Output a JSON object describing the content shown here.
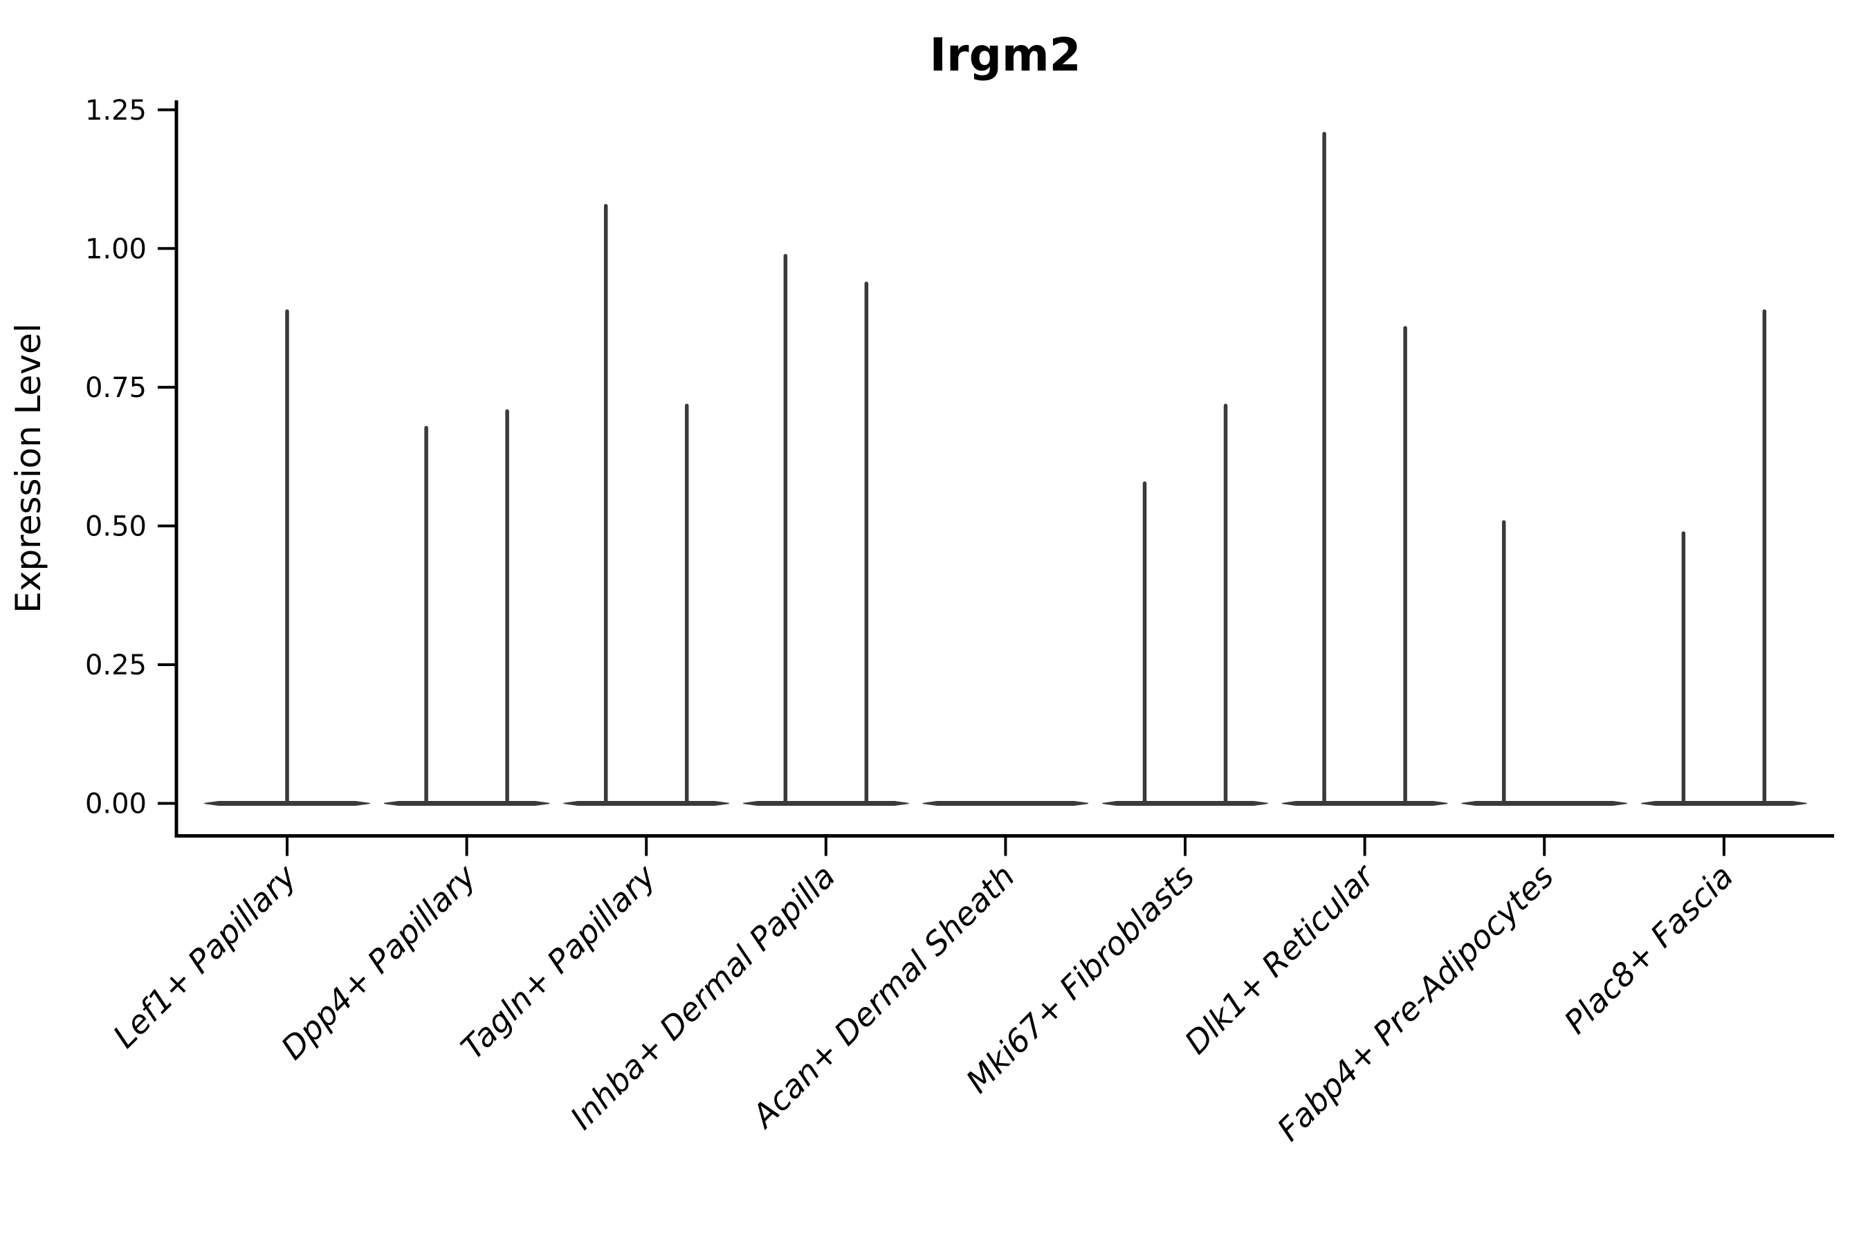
{
  "chart_data": {
    "type": "violin",
    "title": "Irgm2",
    "xlabel": "",
    "ylabel": "Expression Level",
    "ylim": [
      0,
      1.25
    ],
    "yticks": [
      0.0,
      0.25,
      0.5,
      0.75,
      1.0,
      1.25
    ],
    "ytick_labels": [
      "0.00",
      "0.25",
      "0.50",
      "0.75",
      "1.00",
      "1.25"
    ],
    "grid": false,
    "legend": "none",
    "xtick_label_rotation_deg": 45,
    "xtick_label_style": "italic",
    "categories": [
      "Lef1+ Papillary",
      "Dpp4+ Papillary",
      "Tagln+ Papillary",
      "Inhba+ Dermal Papilla",
      "Acan+ Dermal Sheath",
      "Mki67+ Fibroblasts",
      "Dlk1+ Reticular",
      "Fabp4+ Pre-Adipocytes",
      "Plac8+ Fascia"
    ],
    "series": [
      {
        "category": "Lef1+ Papillary",
        "baseline_bar_at": 0,
        "spikes": [
          {
            "position": "center",
            "max": 0.89
          }
        ]
      },
      {
        "category": "Dpp4+ Papillary",
        "baseline_bar_at": 0,
        "spikes": [
          {
            "position": "left",
            "max": 0.68
          },
          {
            "position": "right",
            "max": 0.71
          }
        ]
      },
      {
        "category": "Tagln+ Papillary",
        "baseline_bar_at": 0,
        "spikes": [
          {
            "position": "left",
            "max": 1.08
          },
          {
            "position": "right",
            "max": 0.72
          }
        ]
      },
      {
        "category": "Inhba+ Dermal Papilla",
        "baseline_bar_at": 0,
        "spikes": [
          {
            "position": "left",
            "max": 0.99
          },
          {
            "position": "right",
            "max": 0.94
          }
        ]
      },
      {
        "category": "Acan+ Dermal Sheath",
        "baseline_bar_at": 0,
        "spikes": []
      },
      {
        "category": "Mki67+ Fibroblasts",
        "baseline_bar_at": 0,
        "spikes": [
          {
            "position": "left",
            "max": 0.58
          },
          {
            "position": "right",
            "max": 0.72
          }
        ]
      },
      {
        "category": "Dlk1+ Reticular",
        "baseline_bar_at": 0,
        "spikes": [
          {
            "position": "left",
            "max": 1.21
          },
          {
            "position": "right",
            "max": 0.86
          }
        ]
      },
      {
        "category": "Fabp4+ Pre-Adipocytes",
        "baseline_bar_at": 0,
        "spikes": [
          {
            "position": "left",
            "max": 0.51
          }
        ]
      },
      {
        "category": "Plac8+ Fascia",
        "baseline_bar_at": 0,
        "spikes": [
          {
            "position": "left",
            "max": 0.49
          },
          {
            "position": "right",
            "max": 0.89
          }
        ]
      }
    ],
    "colors": {
      "violin": "#3a3a3a",
      "axis": "#000000",
      "text": "#000000",
      "background": "#ffffff"
    }
  }
}
